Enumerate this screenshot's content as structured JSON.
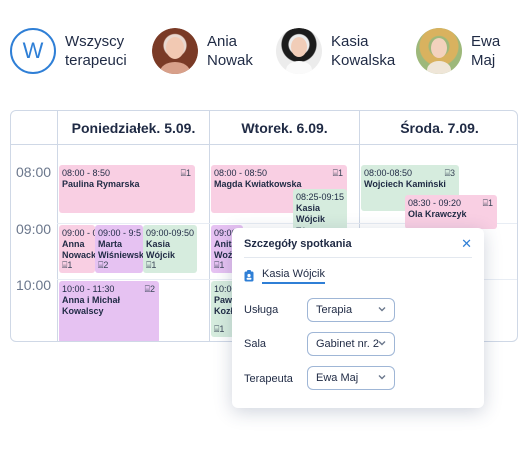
{
  "therapists": [
    {
      "initial": "W",
      "name": "Wszyscy\nterapeuci"
    },
    {
      "name": "Ania\nNowak"
    },
    {
      "name": "Kasia\nKowalska"
    },
    {
      "name": "Ewa\nMaj"
    }
  ],
  "days": [
    "Poniedziałek. 5.09.",
    "Wtorek. 6.09.",
    "Środa. 7.09."
  ],
  "times": [
    "08:00",
    "09:00",
    "10:00"
  ],
  "events": {
    "mon": [
      {
        "time": "08:00 - 8:50",
        "name": "Paulina Rymarska",
        "room": "1"
      },
      {
        "time": "09:00 - 09:",
        "name": "Anna Nowack",
        "room": "1"
      },
      {
        "time": "09:00 - 9:5",
        "name": "Marta Wiśniewska",
        "room": "2"
      },
      {
        "time": "09:00-09:50",
        "name": "Kasia Wójcik",
        "room": "1"
      },
      {
        "time": "10:00 - 11:30",
        "name": "Anna i Michał Kowalscy",
        "room": "2"
      }
    ],
    "tue": [
      {
        "time": "08:00 - 08:50",
        "name": "Magda Kwiatkowska",
        "room": "1"
      },
      {
        "time": "08:25-09:15",
        "name": "Kasia Wójcik",
        "room": "1"
      },
      {
        "time": "09:00",
        "name": "Anita Woźniak",
        "room": "1"
      },
      {
        "time": "10:00",
        "name": "Paweł Kozłowski",
        "room": "1"
      }
    ],
    "wed": [
      {
        "time": "08:00-08:50",
        "name": "Wojciech Kamiński",
        "room": "3"
      },
      {
        "time": "08:30 - 09:20",
        "name": "Ola Krawczyk",
        "room": "1"
      }
    ]
  },
  "popup": {
    "title": "Szczegóły spotkania",
    "person": "Kasia Wójcik",
    "fields": [
      {
        "label": "Usługa",
        "value": "Terapia"
      },
      {
        "label": "Sala",
        "value": "Gabinet nr. 2"
      },
      {
        "label": "Terapeuta",
        "value": "Ewa Maj"
      }
    ]
  },
  "colors": {
    "accent": "#2f7fd6",
    "pink": "#f9cfe3",
    "purple": "#e6c2f2",
    "green": "#d6ecde"
  }
}
